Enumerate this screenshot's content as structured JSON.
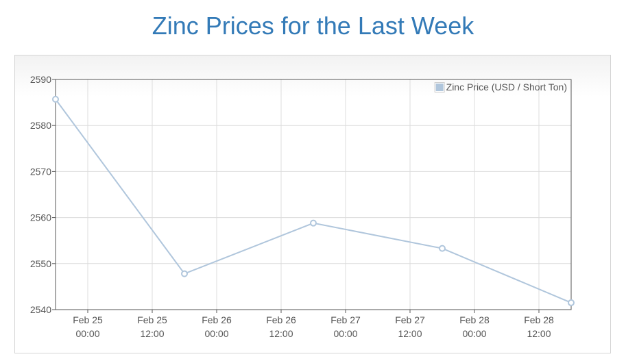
{
  "page": {
    "title": "Zinc Prices for the Last Week"
  },
  "chart_data": {
    "type": "line",
    "title": "Zinc Prices for the Last Week",
    "xlabel": "",
    "ylabel": "",
    "x_is_time": true,
    "xlim": [
      "2025-02-24 18:00",
      "2025-02-28 18:00"
    ],
    "ylim": [
      2540,
      2590
    ],
    "y_ticks": [
      2540,
      2550,
      2560,
      2570,
      2580,
      2590
    ],
    "x_ticks": [
      {
        "at": "2025-02-25 00:00",
        "line1": "Feb 25",
        "line2": "00:00"
      },
      {
        "at": "2025-02-25 12:00",
        "line1": "Feb 25",
        "line2": "12:00"
      },
      {
        "at": "2025-02-26 00:00",
        "line1": "Feb 26",
        "line2": "00:00"
      },
      {
        "at": "2025-02-26 12:00",
        "line1": "Feb 26",
        "line2": "12:00"
      },
      {
        "at": "2025-02-27 00:00",
        "line1": "Feb 27",
        "line2": "00:00"
      },
      {
        "at": "2025-02-27 12:00",
        "line1": "Feb 27",
        "line2": "12:00"
      },
      {
        "at": "2025-02-28 00:00",
        "line1": "Feb 28",
        "line2": "00:00"
      },
      {
        "at": "2025-02-28 12:00",
        "line1": "Feb 28",
        "line2": "12:00"
      }
    ],
    "grid": true,
    "legend_position": "top-right",
    "series": [
      {
        "name": "Zinc Price (USD / Short Ton)",
        "color": "#b0c6dc",
        "points": [
          {
            "x": "2025-02-24 18:00",
            "y": 2585.7
          },
          {
            "x": "2025-02-25 18:00",
            "y": 2547.8
          },
          {
            "x": "2025-02-26 18:00",
            "y": 2558.8
          },
          {
            "x": "2025-02-27 18:00",
            "y": 2553.3
          },
          {
            "x": "2025-02-28 18:00",
            "y": 2541.5
          }
        ]
      }
    ]
  },
  "colors": {
    "title": "#337ab7",
    "grid": "#dcdcdc",
    "axis": "#555555",
    "series": "#b0c6dc"
  }
}
